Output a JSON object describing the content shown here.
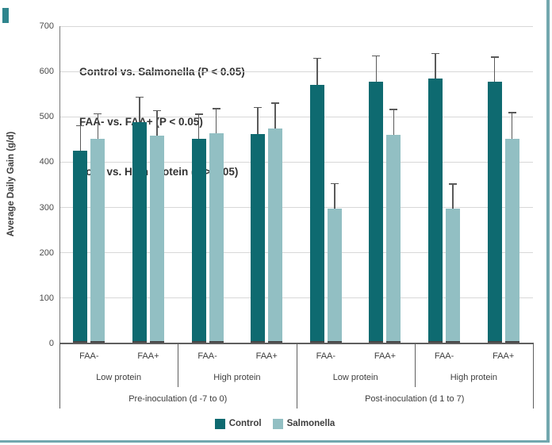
{
  "page": {
    "border_color": "#72a7ae",
    "corner_mark_color": "#2f858d"
  },
  "chart_data": {
    "type": "bar",
    "title": "",
    "xlabel": "",
    "ylabel": "Average Daily Gain (g/d)",
    "ylim": [
      0,
      700
    ],
    "ytick_interval": 100,
    "yticks": [
      0,
      100,
      200,
      300,
      400,
      500,
      600,
      700
    ],
    "grid": "horizontal",
    "legend_position": "bottom",
    "annotations": [
      "Control vs. Salmonella (P < 0.05)",
      "FAA- vs. FAA+ (P < 0.05)",
      "Low  vs. High Protein (P > 0.05)"
    ],
    "categories_level1": [
      "FAA-",
      "FAA+",
      "FAA-",
      "FAA+",
      "FAA-",
      "FAA+",
      "FAA-",
      "FAA+"
    ],
    "categories_level2": [
      "Low protein",
      "High protein",
      "Low protein",
      "High protein"
    ],
    "categories_level3": [
      "Pre-inoculation (d -7 to 0)",
      "Post-inoculation (d 1 to 7)"
    ],
    "series": [
      {
        "name": "Control",
        "color": "#0e6a70",
        "values": [
          425,
          488,
          452,
          462,
          571,
          577,
          584,
          578
        ],
        "error_top": [
          480,
          543,
          506,
          521,
          629,
          634,
          640,
          632
        ]
      },
      {
        "name": "Salmonella",
        "color": "#92bfc3",
        "values": [
          452,
          458,
          463,
          475,
          298,
          461,
          297,
          452
        ],
        "error_top": [
          507,
          514,
          518,
          530,
          353,
          516,
          352,
          509
        ]
      }
    ],
    "legend": [
      "Control",
      "Salmonella"
    ]
  }
}
